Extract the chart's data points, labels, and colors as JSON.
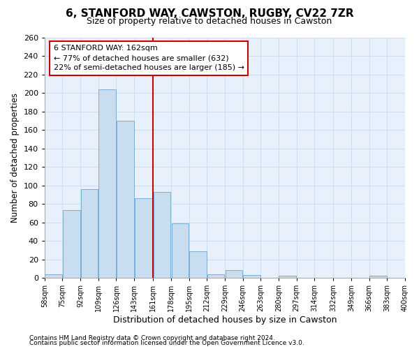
{
  "title": "6, STANFORD WAY, CAWSTON, RUGBY, CV22 7ZR",
  "subtitle": "Size of property relative to detached houses in Cawston",
  "xlabel": "Distribution of detached houses by size in Cawston",
  "ylabel": "Number of detached properties",
  "footnote1": "Contains HM Land Registry data © Crown copyright and database right 2024.",
  "footnote2": "Contains public sector information licensed under the Open Government Licence v3.0.",
  "annotation_title": "6 STANFORD WAY: 162sqm",
  "annotation_line1": "← 77% of detached houses are smaller (632)",
  "annotation_line2": "22% of semi-detached houses are larger (185) →",
  "bar_color": "#c9ddf0",
  "bar_edge_color": "#7aaed6",
  "vline_x": 161,
  "vline_color": "#cc0000",
  "bin_edges": [
    58,
    75,
    92,
    109,
    126,
    143,
    161,
    178,
    195,
    212,
    229,
    246,
    263,
    280,
    297,
    314,
    332,
    349,
    366,
    383,
    400
  ],
  "bar_heights": [
    4,
    73,
    96,
    204,
    170,
    86,
    93,
    59,
    29,
    4,
    8,
    3,
    0,
    2,
    0,
    0,
    0,
    0,
    2,
    0
  ],
  "tick_labels": [
    "58sqm",
    "75sqm",
    "92sqm",
    "109sqm",
    "126sqm",
    "143sqm",
    "161sqm",
    "178sqm",
    "195sqm",
    "212sqm",
    "229sqm",
    "246sqm",
    "263sqm",
    "280sqm",
    "297sqm",
    "314sqm",
    "332sqm",
    "349sqm",
    "366sqm",
    "383sqm",
    "400sqm"
  ],
  "ylim": [
    0,
    260
  ],
  "yticks": [
    0,
    20,
    40,
    60,
    80,
    100,
    120,
    140,
    160,
    180,
    200,
    220,
    240,
    260
  ],
  "grid_color": "#ccdff0",
  "bg_color": "#e8f1fb",
  "fig_bg_color": "#ffffff"
}
